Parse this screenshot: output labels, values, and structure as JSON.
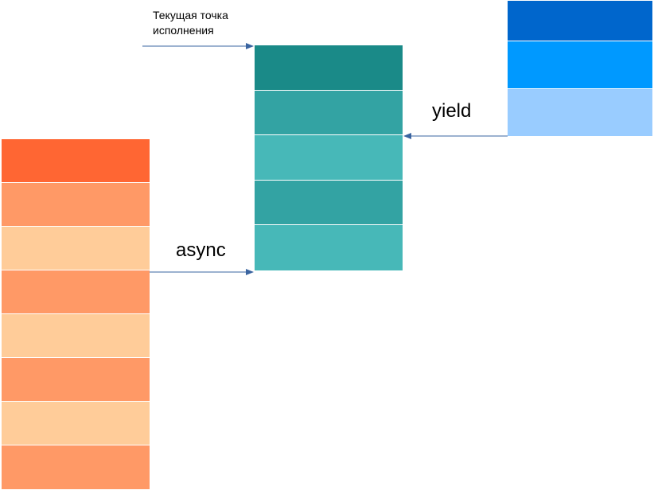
{
  "labels": {
    "current_point_line1": "Текущая точка",
    "current_point_line2": "исполнения",
    "yield": "yield",
    "async": "async"
  },
  "colors": {
    "arrow": "#3a64a0"
  },
  "stacks": {
    "left": {
      "blocks": [
        "#ff6633",
        "#ff9966",
        "#ffcc99",
        "#ff9966",
        "#ffcc99",
        "#ff9966",
        "#ffcc99",
        "#ff9966"
      ]
    },
    "middle": {
      "blocks": [
        "#1a8a88",
        "#33a3a3",
        "#47b8b8",
        "#33a3a3",
        "#47b8b8"
      ]
    },
    "right": {
      "blocks": [
        "#0066cc",
        "#0099ff",
        "#99ccff"
      ]
    }
  }
}
